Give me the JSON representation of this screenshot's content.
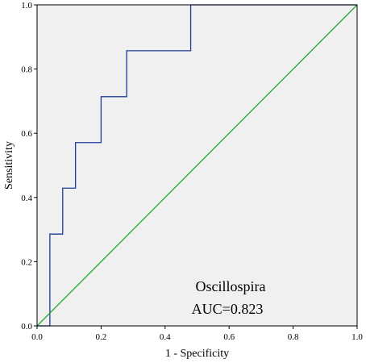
{
  "chart_data": {
    "type": "line",
    "title": "",
    "xlabel": "1 - Specificity",
    "ylabel": "Sensitivity",
    "xlim": [
      0.0,
      1.0
    ],
    "ylim": [
      0.0,
      1.0
    ],
    "xticks": [
      "0.0",
      "0.2",
      "0.4",
      "0.6",
      "0.8",
      "1.0"
    ],
    "yticks": [
      "0.0",
      "0.2",
      "0.4",
      "0.6",
      "0.8",
      "1.0"
    ],
    "grid": false,
    "background_color": "#f0f0f0",
    "series": [
      {
        "color": "#1f3b9c",
        "x": [
          0.0,
          0.04,
          0.04,
          0.08,
          0.08,
          0.12,
          0.12,
          0.2,
          0.2,
          0.28,
          0.28,
          0.48,
          0.48,
          1.0
        ],
        "y": [
          0.0,
          0.0,
          0.286,
          0.286,
          0.429,
          0.429,
          0.571,
          0.571,
          0.714,
          0.714,
          0.857,
          0.857,
          1.0,
          1.0
        ]
      },
      {
        "color": "#22aa33",
        "x": [
          0.0,
          1.0
        ],
        "y": [
          0.0,
          1.0
        ]
      }
    ],
    "annotations": [
      "Oscillospira",
      "AUC=0.823"
    ]
  }
}
